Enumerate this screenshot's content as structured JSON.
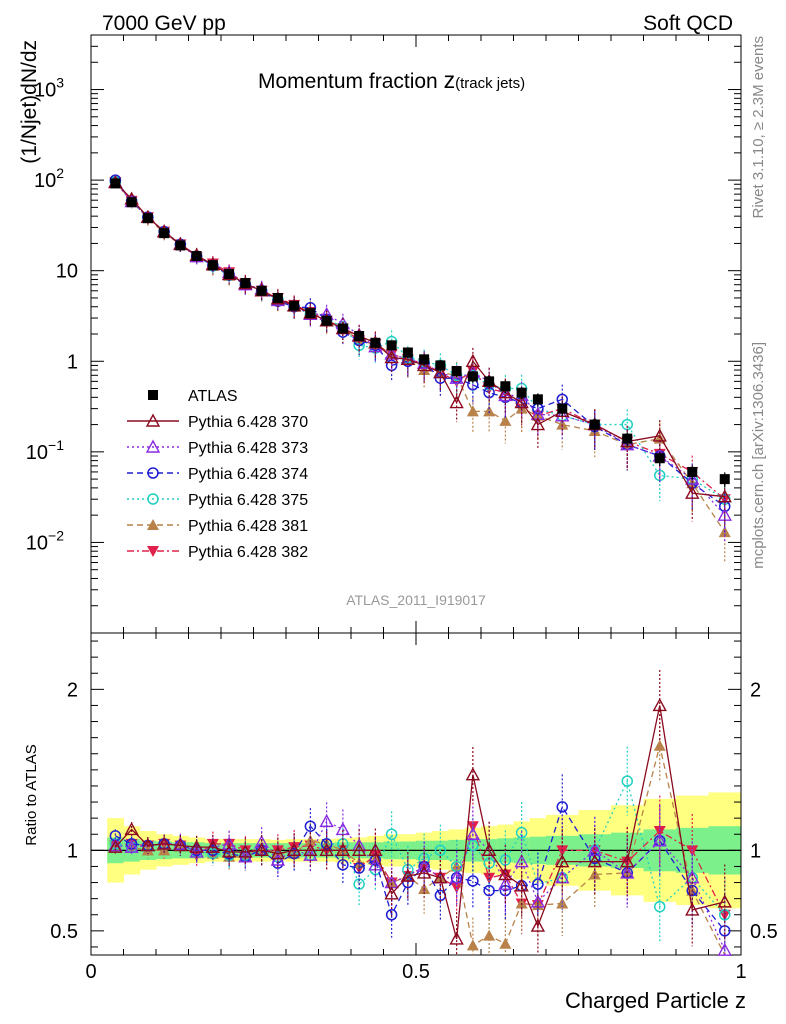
{
  "header": {
    "left": "7000 GeV pp",
    "right": "Soft QCD"
  },
  "side_labels": {
    "top": "Rivet 3.1.10, ≥ 2.3M events",
    "bottom": "mcplots.cern.ch [arXiv:1306.3436]"
  },
  "analysis_id": "ATLAS_2011_I919017",
  "colors": {
    "ATLAS": "#000000",
    "p370": "#8b0a1e",
    "p373": "#8a2be2",
    "p374": "#1e1ed2",
    "p375": "#20d0c0",
    "p381": "#b8824a",
    "p382": "#e0204a",
    "band_inner": "#7cf08a",
    "band_outer": "#ffff80"
  },
  "chart_data": [
    {
      "type": "line",
      "panel": "main",
      "title_main": "Momentum fraction ",
      "title_var": "z",
      "title_sub": "(track jets)",
      "ylabel": "(1/Njet)dN/dz",
      "xlabel": "",
      "xlim": [
        0,
        1
      ],
      "ylim": [
        0.001,
        4000
      ],
      "yscale": "log",
      "yticks": [
        {
          "v": 0.01,
          "base": "10",
          "exp": "−2"
        },
        {
          "v": 0.1,
          "base": "10",
          "exp": "−1"
        },
        {
          "v": 1,
          "base": "1",
          "exp": ""
        },
        {
          "v": 10,
          "base": "10",
          "exp": ""
        },
        {
          "v": 100,
          "base": "10",
          "exp": "2"
        },
        {
          "v": 1000,
          "base": "10",
          "exp": "3"
        }
      ],
      "legend_position": "middle-left",
      "x": [
        0.0375,
        0.0625,
        0.0875,
        0.1125,
        0.1375,
        0.1625,
        0.1875,
        0.2125,
        0.2375,
        0.2625,
        0.2875,
        0.3125,
        0.3375,
        0.3625,
        0.3875,
        0.4125,
        0.4375,
        0.4625,
        0.4875,
        0.5125,
        0.5375,
        0.5625,
        0.5875,
        0.6125,
        0.6375,
        0.6625,
        0.6875,
        0.725,
        0.775,
        0.825,
        0.875,
        0.925,
        0.975
      ],
      "series": [
        {
          "name": "ATLAS",
          "key": "ATLAS",
          "style": "data",
          "values": [
            92,
            57,
            38,
            26,
            19,
            14.5,
            11.5,
            9.2,
            7.3,
            6.0,
            5.0,
            4.1,
            3.4,
            2.8,
            2.3,
            1.9,
            1.6,
            1.5,
            1.25,
            1.05,
            0.9,
            0.78,
            0.68,
            0.6,
            0.53,
            0.45,
            0.38,
            0.3,
            0.2,
            0.14,
            0.085,
            0.06,
            0.05
          ]
        },
        {
          "name": "Pythia 6.428 370",
          "key": "p370",
          "style": "solid",
          "values": [
            94,
            62,
            39,
            27,
            19.5,
            14.8,
            11.7,
            9.1,
            7.2,
            6.0,
            4.9,
            4.1,
            3.4,
            2.8,
            2.3,
            1.9,
            1.6,
            1.1,
            1.05,
            0.9,
            0.75,
            0.35,
            1.0,
            0.6,
            0.45,
            0.35,
            0.2,
            0.28,
            0.2,
            0.13,
            0.15,
            0.035,
            0.032
          ]
        },
        {
          "name": "Pythia 6.428 373",
          "key": "p373",
          "style": "dot",
          "values": [
            95,
            58,
            39,
            27,
            19.7,
            14.3,
            11.7,
            9.6,
            7.0,
            6.3,
            4.7,
            4.1,
            3.3,
            3.3,
            2.6,
            1.95,
            1.45,
            1.2,
            1.05,
            0.95,
            0.75,
            0.65,
            0.75,
            0.6,
            0.42,
            0.42,
            0.26,
            0.25,
            0.2,
            0.12,
            0.09,
            0.05,
            0.02
          ]
        },
        {
          "name": "Pythia 6.428 374",
          "key": "p374",
          "style": "dash",
          "values": [
            100,
            59,
            39,
            27,
            19.5,
            14.5,
            11.5,
            9.0,
            7.0,
            6.0,
            4.6,
            4.0,
            3.9,
            2.9,
            2.1,
            1.7,
            1.5,
            0.9,
            1.0,
            0.95,
            0.65,
            0.65,
            0.55,
            0.45,
            0.4,
            0.35,
            0.3,
            0.38,
            0.19,
            0.12,
            0.09,
            0.045,
            0.025
          ]
        },
        {
          "name": "Pythia 6.428 375",
          "key": "p375",
          "style": "dot",
          "values": [
            96,
            58,
            39,
            27,
            19.5,
            14.3,
            11.3,
            8.9,
            7.1,
            6.0,
            4.8,
            4.0,
            3.3,
            2.9,
            2.4,
            1.5,
            1.4,
            1.65,
            1.1,
            1.0,
            0.9,
            0.7,
            0.7,
            0.55,
            0.5,
            0.5,
            0.3,
            0.25,
            0.2,
            0.2,
            0.055,
            0.05,
            0.03
          ]
        },
        {
          "name": "Pythia 6.428 381",
          "key": "p381",
          "style": "dash",
          "values": [
            96,
            58,
            38,
            26,
            19.5,
            14.8,
            11.3,
            8.8,
            7.0,
            6.1,
            4.9,
            4.0,
            3.6,
            2.9,
            2.3,
            1.75,
            1.5,
            1.2,
            1.05,
            0.8,
            0.75,
            0.7,
            0.28,
            0.28,
            0.22,
            0.3,
            0.25,
            0.2,
            0.17,
            0.12,
            0.14,
            0.045,
            0.013
          ]
        },
        {
          "name": "Pythia 6.428 382",
          "key": "p382",
          "style": "dashdot",
          "values": [
            95,
            59,
            39,
            27,
            19.5,
            14.0,
            12.0,
            9.6,
            7.3,
            6.0,
            5.0,
            4.2,
            3.5,
            2.8,
            2.3,
            1.7,
            1.55,
            1.2,
            1.05,
            0.95,
            0.75,
            0.6,
            0.78,
            0.5,
            0.45,
            0.3,
            0.25,
            0.3,
            0.2,
            0.13,
            0.095,
            0.06,
            0.03
          ]
        }
      ]
    },
    {
      "type": "line",
      "panel": "ratio",
      "ylabel": "Ratio to ATLAS",
      "xlabel": "Charged Particle z",
      "xlim": [
        0,
        1
      ],
      "ylim": [
        0.35,
        2.35
      ],
      "yticks": [
        0.5,
        1,
        2
      ],
      "xticks": [
        {
          "v": 0,
          "label": "0"
        },
        {
          "v": 0.5,
          "label": "0.5"
        },
        {
          "v": 1,
          "label": "1"
        }
      ],
      "band_x_edges": [
        0.025,
        0.05,
        0.075,
        0.1,
        0.125,
        0.15,
        0.175,
        0.2,
        0.225,
        0.25,
        0.275,
        0.3,
        0.325,
        0.35,
        0.375,
        0.4,
        0.425,
        0.45,
        0.475,
        0.5,
        0.525,
        0.55,
        0.575,
        0.6,
        0.625,
        0.65,
        0.675,
        0.7,
        0.75,
        0.8,
        0.85,
        0.9,
        0.95,
        1.0
      ],
      "band_inner_halfwidth": [
        0.08,
        0.07,
        0.06,
        0.055,
        0.05,
        0.05,
        0.045,
        0.045,
        0.045,
        0.045,
        0.045,
        0.045,
        0.045,
        0.045,
        0.05,
        0.05,
        0.05,
        0.055,
        0.055,
        0.06,
        0.06,
        0.065,
        0.07,
        0.07,
        0.075,
        0.08,
        0.085,
        0.09,
        0.1,
        0.11,
        0.13,
        0.14,
        0.15
      ],
      "band_outer_halfwidth": [
        0.2,
        0.15,
        0.12,
        0.1,
        0.09,
        0.08,
        0.07,
        0.07,
        0.07,
        0.07,
        0.065,
        0.07,
        0.07,
        0.07,
        0.075,
        0.08,
        0.09,
        0.1,
        0.1,
        0.11,
        0.12,
        0.13,
        0.14,
        0.15,
        0.16,
        0.18,
        0.2,
        0.22,
        0.25,
        0.28,
        0.32,
        0.34,
        0.36
      ],
      "series": [
        {
          "key": "p370",
          "values": [
            1.02,
            1.13,
            1.03,
            1.04,
            1.03,
            1.02,
            1.02,
            0.99,
            0.99,
            1.0,
            0.98,
            1.0,
            1.0,
            1.0,
            1.0,
            1.0,
            1.0,
            0.73,
            0.84,
            0.86,
            0.83,
            0.45,
            1.47,
            1.0,
            0.85,
            0.78,
            0.53,
            0.93,
            0.93,
            0.93,
            1.9,
            0.63,
            0.68
          ]
        },
        {
          "key": "p373",
          "values": [
            1.03,
            1.02,
            1.03,
            1.04,
            1.04,
            0.99,
            1.02,
            1.04,
            0.96,
            1.05,
            0.94,
            1.0,
            0.97,
            1.18,
            1.13,
            1.03,
            0.91,
            0.8,
            0.84,
            0.9,
            0.83,
            0.83,
            1.1,
            1.0,
            0.79,
            0.93,
            0.68,
            0.83,
            1.0,
            0.86,
            1.06,
            0.83,
            0.38
          ]
        },
        {
          "key": "p374",
          "values": [
            1.09,
            1.04,
            1.03,
            1.04,
            1.03,
            1.0,
            1.0,
            0.98,
            0.96,
            1.0,
            0.92,
            0.98,
            1.15,
            1.04,
            0.91,
            0.89,
            0.94,
            0.6,
            0.8,
            0.9,
            0.72,
            0.83,
            0.81,
            0.75,
            0.75,
            0.78,
            0.79,
            1.27,
            0.95,
            0.86,
            1.06,
            0.75,
            0.5
          ]
        },
        {
          "key": "p375",
          "values": [
            1.04,
            1.02,
            1.03,
            1.04,
            1.03,
            0.99,
            0.98,
            0.97,
            0.97,
            1.0,
            0.96,
            0.98,
            0.97,
            1.04,
            1.04,
            0.79,
            0.88,
            1.1,
            0.88,
            0.95,
            1.0,
            0.9,
            1.03,
            0.92,
            0.94,
            1.11,
            0.79,
            0.83,
            1.0,
            1.43,
            0.65,
            0.83,
            0.6
          ]
        },
        {
          "key": "p381",
          "values": [
            1.04,
            1.02,
            1.0,
            1.0,
            1.03,
            1.02,
            0.98,
            0.96,
            0.96,
            1.02,
            0.98,
            0.98,
            1.06,
            1.04,
            1.0,
            0.92,
            0.94,
            0.8,
            0.84,
            0.76,
            0.83,
            0.9,
            0.41,
            0.47,
            0.42,
            0.67,
            0.66,
            0.67,
            0.85,
            0.86,
            1.65,
            0.75,
            0.26
          ]
        },
        {
          "key": "p382",
          "values": [
            1.03,
            1.04,
            1.03,
            1.04,
            1.03,
            0.97,
            1.04,
            1.04,
            1.0,
            1.0,
            1.0,
            1.02,
            1.03,
            1.0,
            1.0,
            0.89,
            0.97,
            0.8,
            0.84,
            0.9,
            0.83,
            0.77,
            1.15,
            0.83,
            0.85,
            0.67,
            0.66,
            1.0,
            1.0,
            0.93,
            1.12,
            1.0,
            0.6
          ]
        }
      ]
    }
  ]
}
